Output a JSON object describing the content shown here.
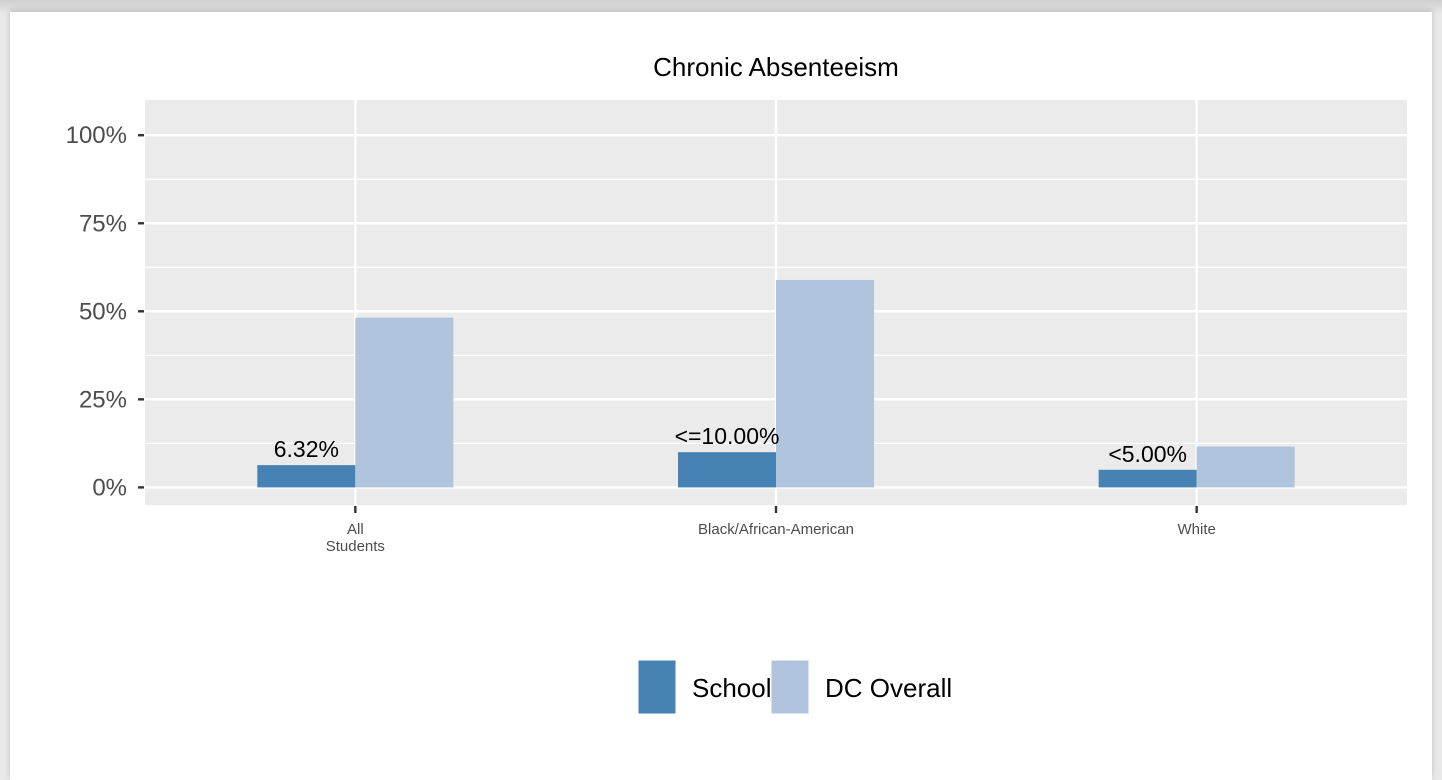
{
  "chart_data": {
    "type": "bar",
    "title": "Chronic Absenteeism",
    "categories": [
      [
        "All",
        "Students"
      ],
      [
        "Black/African-American"
      ],
      [
        "White"
      ]
    ],
    "series": [
      {
        "name": "School",
        "color": "#4682b4",
        "values": [
          6.32,
          10.0,
          5.0
        ],
        "labels": [
          "6.32%",
          "<=10.00%",
          "<5.00%"
        ]
      },
      {
        "name": "DC Overall",
        "color": "#b0c4de",
        "values": [
          48.2,
          58.9,
          11.6
        ]
      }
    ],
    "ylim": [
      -5,
      110
    ],
    "yticks": [
      {
        "value": 0,
        "label": "0%"
      },
      {
        "value": 25,
        "label": "25%"
      },
      {
        "value": 50,
        "label": "50%"
      },
      {
        "value": 75,
        "label": "75%"
      },
      {
        "value": 100,
        "label": "100%"
      }
    ],
    "panel_color": "#ebebeb",
    "grid": true,
    "legend": "bottom"
  }
}
